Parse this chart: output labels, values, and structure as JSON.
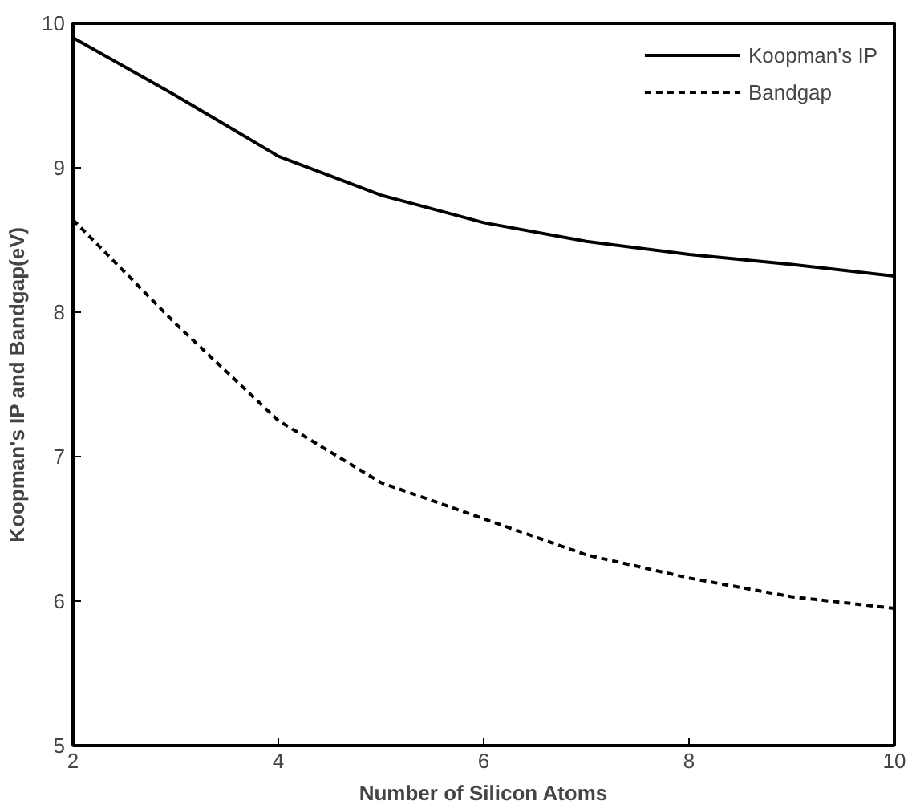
{
  "chart_data": {
    "type": "line",
    "xlabel": "Number of Silicon Atoms",
    "ylabel": "Koopman's IP and Bandgap(eV)",
    "x": [
      2,
      3,
      4,
      5,
      6,
      7,
      8,
      9,
      10
    ],
    "series": [
      {
        "name": "Koopman's IP",
        "color": "#000000",
        "line_style": "solid",
        "values": [
          9.9,
          9.5,
          9.08,
          8.81,
          8.62,
          8.49,
          8.4,
          8.33,
          8.25
        ]
      },
      {
        "name": "Bandgap",
        "color": "#000000",
        "line_style": "dashed",
        "values": [
          8.64,
          7.92,
          7.25,
          6.82,
          6.57,
          6.32,
          6.16,
          6.03,
          5.95
        ]
      }
    ],
    "xlim": [
      2,
      10
    ],
    "ylim": [
      5,
      10
    ],
    "xticks": [
      2,
      4,
      6,
      8,
      10
    ],
    "yticks": [
      5,
      6,
      7,
      8,
      9,
      10
    ],
    "grid": false,
    "legend": "top right",
    "marker": "none"
  }
}
